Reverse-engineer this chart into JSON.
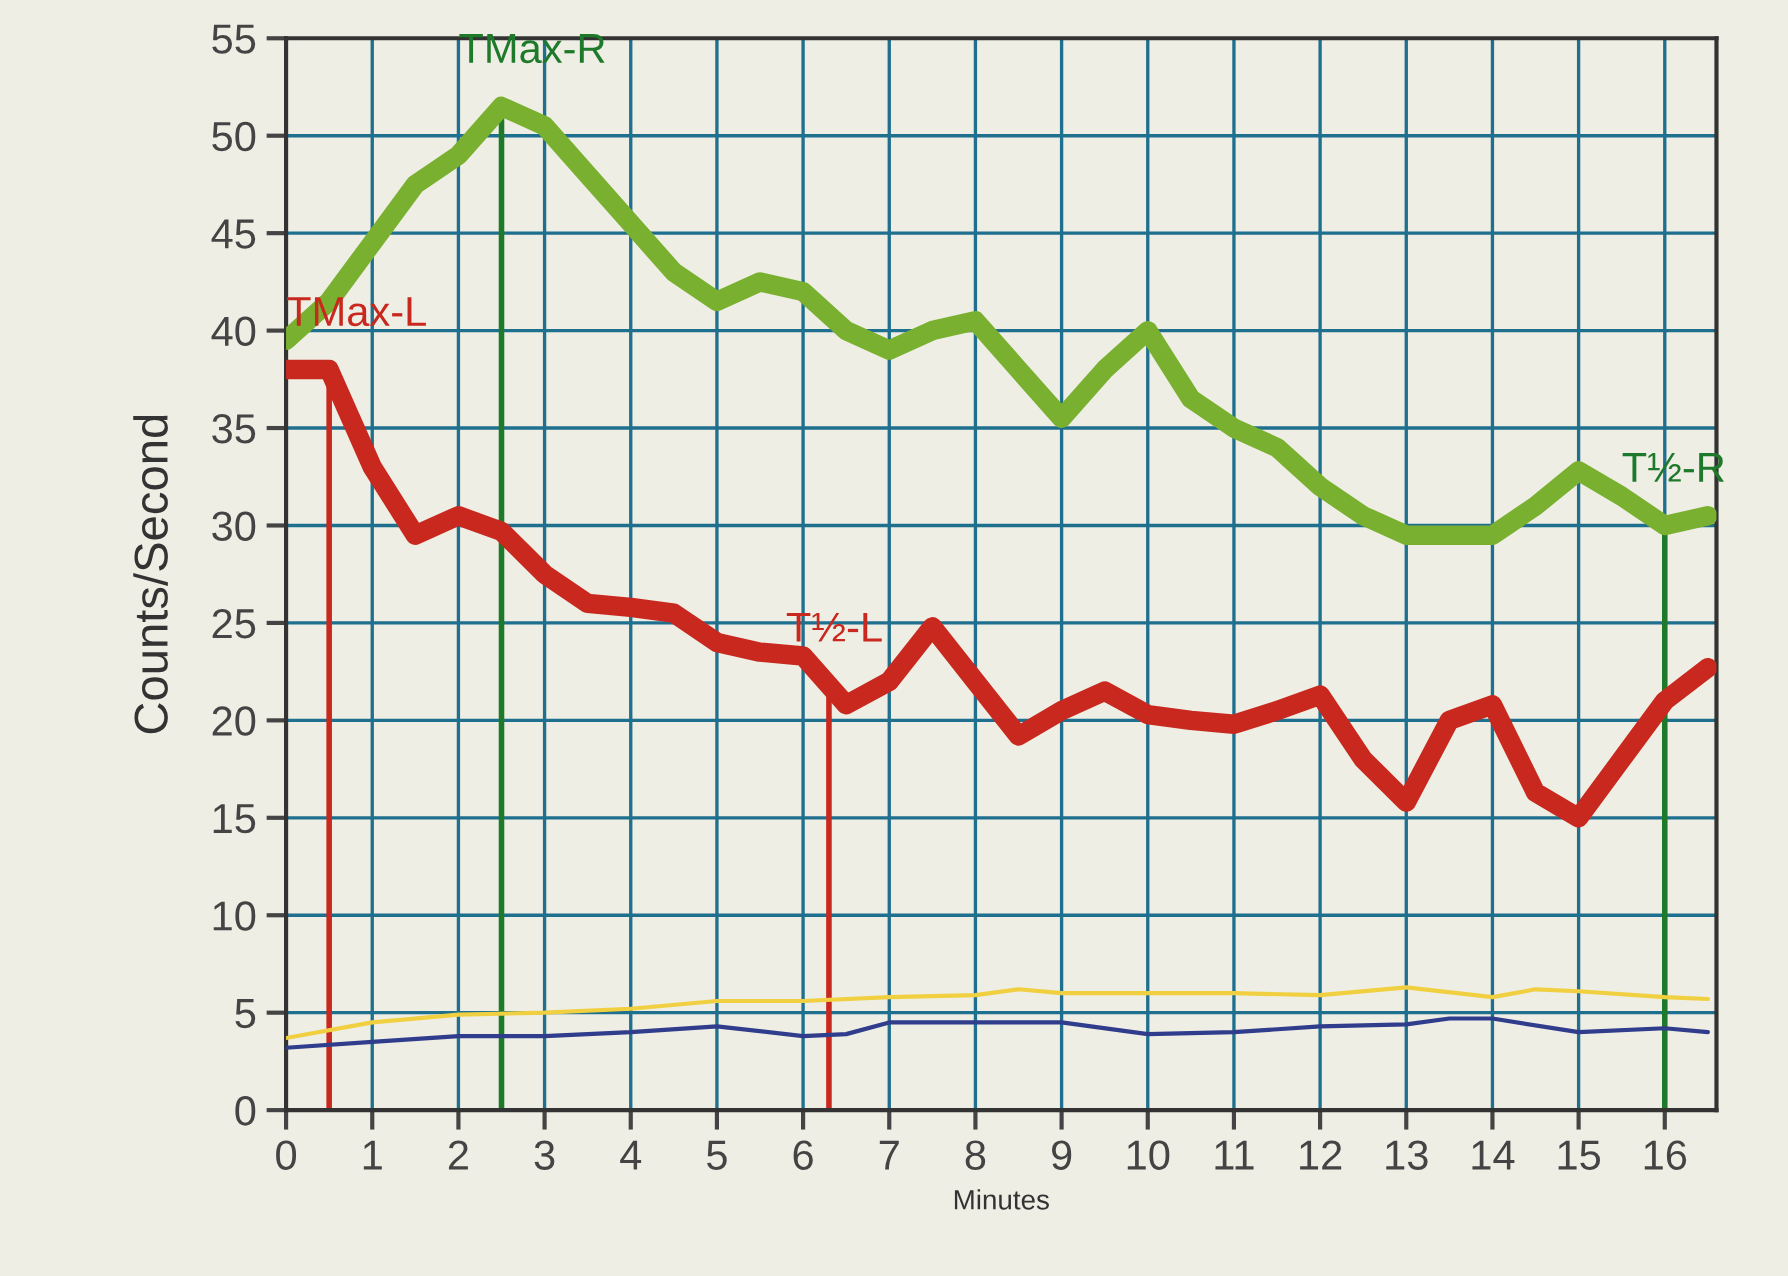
{
  "chart_data": {
    "type": "line",
    "xlabel": "Minutes",
    "ylabel": "Counts/Second",
    "xlim": [
      0,
      16.6
    ],
    "ylim": [
      0,
      55
    ],
    "xticks": [
      0,
      1,
      2,
      3,
      4,
      5,
      6,
      7,
      8,
      9,
      10,
      11,
      12,
      13,
      14,
      15,
      16
    ],
    "yticks": [
      0,
      5,
      10,
      15,
      20,
      25,
      30,
      35,
      40,
      45,
      50,
      55
    ],
    "grid": true,
    "marker": "none",
    "line_style": "solid",
    "series": [
      {
        "color": "#f0d040",
        "x": [
          0,
          1,
          2,
          3,
          4,
          5,
          6,
          7,
          8,
          8.5,
          9,
          10,
          11,
          12,
          13,
          14,
          14.5,
          15,
          16,
          16.5
        ],
        "values": [
          3.7,
          4.5,
          4.9,
          5.0,
          5.2,
          5.6,
          5.6,
          5.8,
          5.9,
          6.2,
          6.0,
          6.0,
          6.0,
          5.9,
          6.3,
          5.8,
          6.2,
          6.1,
          5.8,
          5.7
        ]
      },
      {
        "color": "#303c8c",
        "x": [
          0,
          1,
          2,
          3,
          4,
          5,
          6,
          6.5,
          7,
          8,
          9,
          10,
          11,
          12,
          13,
          13.5,
          14,
          15,
          16,
          16.5
        ],
        "values": [
          3.2,
          3.5,
          3.8,
          3.8,
          4.0,
          4.3,
          3.8,
          3.9,
          4.5,
          4.5,
          4.5,
          3.9,
          4.0,
          4.3,
          4.4,
          4.7,
          4.7,
          4.0,
          4.2,
          4.0
        ]
      },
      {
        "color": "#7ab030",
        "x": [
          0,
          0.5,
          1,
          1.5,
          2,
          2.5,
          3,
          3.5,
          4,
          4.5,
          5,
          5.5,
          6,
          6.5,
          7,
          7.5,
          8,
          8.5,
          9,
          9.5,
          10,
          10.5,
          11,
          11.5,
          12,
          12.5,
          13,
          13.5,
          14,
          14.5,
          15,
          15.5,
          16,
          16.5
        ],
        "values": [
          39.5,
          41.5,
          44.5,
          47.5,
          49,
          51.5,
          50.5,
          48,
          45.5,
          43,
          41.5,
          42.5,
          42,
          40,
          39,
          40,
          40.5,
          38,
          35.5,
          38,
          40,
          36.5,
          35,
          34,
          32,
          30.5,
          29.5,
          29.5,
          29.5,
          31,
          32.8,
          31.5,
          30,
          30.5
        ]
      },
      {
        "color": "#c8281e",
        "x": [
          0,
          0.5,
          1,
          1.5,
          2,
          2.5,
          3,
          3.5,
          4,
          4.5,
          5,
          5.5,
          6,
          6.5,
          7,
          7.5,
          8,
          8.5,
          9,
          9.5,
          10,
          10.5,
          11,
          11.5,
          12,
          12.5,
          13,
          13.5,
          14,
          14.5,
          15,
          15.5,
          16,
          16.5
        ],
        "values": [
          38,
          38,
          33,
          29.5,
          30.5,
          29.7,
          27.5,
          26,
          25.8,
          25.5,
          24,
          23.5,
          23.3,
          20.8,
          22,
          24.8,
          22,
          19.2,
          20.5,
          21.5,
          20.3,
          20,
          19.8,
          20.5,
          21.3,
          18,
          15.8,
          20,
          20.8,
          16.3,
          15,
          18,
          21,
          22.7
        ]
      }
    ],
    "ref_lines": [
      {
        "axis": "x",
        "value": 0.5,
        "label": "TMax-L",
        "color": "#c8281e"
      },
      {
        "axis": "x",
        "value": 2.5,
        "label": "TMax-R",
        "color": "#1e7a2a"
      },
      {
        "axis": "x",
        "value": 6.3,
        "label": "T½-L",
        "color": "#c8281e"
      },
      {
        "axis": "x",
        "value": 16,
        "label": "T½-R",
        "color": "#1e7a2a"
      }
    ]
  }
}
